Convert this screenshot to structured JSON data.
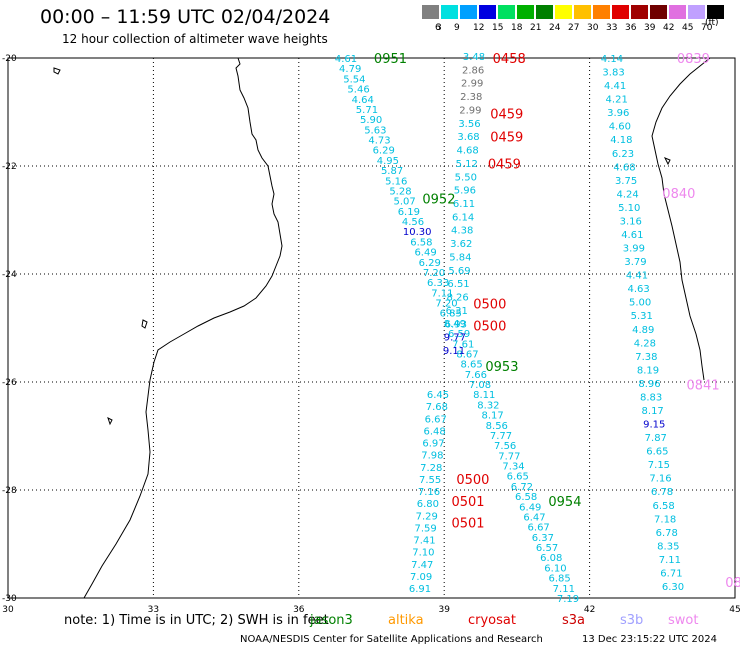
{
  "title": "00:00 – 11:59 UTC 02/04/2024",
  "subtitle": "12 hour collection of altimeter wave heights",
  "colorbar": {
    "unit": "(ft)",
    "labels": [
      "3",
      "6",
      "9",
      "12",
      "15",
      "18",
      "21",
      "24",
      "27",
      "30",
      "33",
      "36",
      "39",
      "42",
      "45",
      "70"
    ],
    "colors": [
      "#808080",
      "#00e0e0",
      "#00a0ff",
      "#0000e0",
      "#00e060",
      "#00b000",
      "#008000",
      "#ffff00",
      "#ffc000",
      "#ff8000",
      "#e00000",
      "#a00000",
      "#700000",
      "#e070e0",
      "#c0a0ff",
      "#000000"
    ]
  },
  "axes": {
    "lon_ticks": [
      "30",
      "33",
      "36",
      "39",
      "42",
      "45"
    ],
    "lat_ticks": [
      "-20",
      "-22",
      "-24",
      "-26",
      "-28",
      "-30"
    ]
  },
  "note": "note:  1) Time is in UTC;  2) SWH is in feet",
  "legend": [
    {
      "name": "jason3",
      "color": "#008000"
    },
    {
      "name": "altika",
      "color": "#ff9900"
    },
    {
      "name": "cryosat",
      "color": "#e00000"
    },
    {
      "name": "s3a",
      "color": "#cc0000"
    },
    {
      "name": "s3b",
      "color": "#a0a0ff"
    },
    {
      "name": "swot",
      "color": "#ee88ee"
    }
  ],
  "credit": "NOAA/NESDIS Center for Satellite Applications and Research",
  "stamp": "13 Dec 23:15:22 UTC 2024",
  "track_colors": {
    "cyan": "#00bfe0",
    "blue": "#0000cc",
    "gray": "#707070",
    "green": "#008000",
    "red": "#e00000",
    "pink": "#ee88ee"
  },
  "passes": [
    {
      "text": "0951",
      "lon": 37.55,
      "lat": -20.0,
      "color": "#008000"
    },
    {
      "text": "0952",
      "lon": 38.55,
      "lat": -22.6,
      "color": "#008000"
    },
    {
      "text": "0953",
      "lon": 39.85,
      "lat": -25.7,
      "color": "#008000"
    },
    {
      "text": "0954",
      "lon": 41.15,
      "lat": -28.2,
      "color": "#008000"
    },
    {
      "text": "0458",
      "lon": 40.0,
      "lat": -20.0,
      "color": "#e00000"
    },
    {
      "text": "0459",
      "lon": 39.95,
      "lat": -21.03,
      "color": "#e00000"
    },
    {
      "text": "0459",
      "lon": 39.95,
      "lat": -21.45,
      "color": "#e00000"
    },
    {
      "text": "0459",
      "lon": 39.9,
      "lat": -21.95,
      "color": "#e00000"
    },
    {
      "text": "0500",
      "lon": 39.6,
      "lat": -24.55,
      "color": "#e00000"
    },
    {
      "text": "0500",
      "lon": 39.6,
      "lat": -24.95,
      "color": "#e00000"
    },
    {
      "text": "0500",
      "lon": 39.25,
      "lat": -27.8,
      "color": "#e00000"
    },
    {
      "text": "0501",
      "lon": 39.15,
      "lat": -28.2,
      "color": "#e00000"
    },
    {
      "text": "0501",
      "lon": 39.15,
      "lat": -28.6,
      "color": "#e00000"
    },
    {
      "text": "0839",
      "lon": 43.8,
      "lat": -20.0,
      "color": "#ee88ee"
    },
    {
      "text": "0840",
      "lon": 43.5,
      "lat": -22.5,
      "color": "#ee88ee"
    },
    {
      "text": "0841",
      "lon": 44.0,
      "lat": -26.05,
      "color": "#ee88ee"
    },
    {
      "text": "08",
      "lon": 44.8,
      "lat": -29.7,
      "color": "#ee88ee"
    }
  ],
  "track_a": [
    "4.61",
    "4.79",
    "5.54",
    "5.46",
    "4.64",
    "5.71",
    "5.90",
    "5.63",
    "4.73",
    "6.29",
    "4.95",
    "5.87",
    "5.16",
    "5.28",
    "5.07",
    "6.19",
    "4.56",
    "10.30",
    "6.58",
    "6.49",
    "6.29",
    "7.20",
    "6.33",
    "7.11",
    "7.20",
    "6.85",
    "8.49",
    "6.59",
    "7.61",
    "8.67",
    "8.65",
    "7.66",
    "7.08",
    "8.11",
    "8.32",
    "8.17",
    "8.56",
    "7.77",
    "7.56",
    "7.77",
    "7.34",
    "6.65",
    "6.72",
    "6.58",
    "6.49",
    "6.47",
    "6.67",
    "6.37",
    "6.57",
    "6.08",
    "6.10",
    "6.85",
    "7.11",
    "7.19"
  ],
  "track_b": [
    "3.48",
    "2.86",
    "2.99",
    "2.38",
    "2.99",
    "3.56",
    "3.68",
    "4.68",
    "5.12",
    "5.50",
    "5.96",
    "6.11",
    "6.14",
    "4.38",
    "3.62",
    "5.84",
    "5.69",
    "6.51",
    "8.26",
    "6.31",
    "6.93",
    "9.77",
    "9.11"
  ],
  "track_c": [
    "6.45",
    "7.68",
    "6.67",
    "6.48",
    "6.97",
    "7.98",
    "7.28",
    "7.55",
    "7.16",
    "6.80",
    "7.29",
    "7.59",
    "7.41",
    "7.10",
    "7.47",
    "7.09",
    "6.91"
  ],
  "track_d": [
    "4.14",
    "3.83",
    "4.41",
    "4.21",
    "3.96",
    "4.60",
    "4.18",
    "6.23",
    "4.68",
    "3.75",
    "4.24",
    "5.10",
    "3.16",
    "4.61",
    "3.99",
    "3.79",
    "4.41",
    "4.63",
    "5.00",
    "5.31",
    "4.89",
    "4.28",
    "7.38",
    "8.19",
    "8.96",
    "8.83",
    "8.17",
    "9.15",
    "7.87",
    "6.65",
    "7.15",
    "7.16",
    "6.78",
    "6.58",
    "7.18",
    "6.78",
    "8.35",
    "7.11",
    "6.71",
    "6.30"
  ]
}
